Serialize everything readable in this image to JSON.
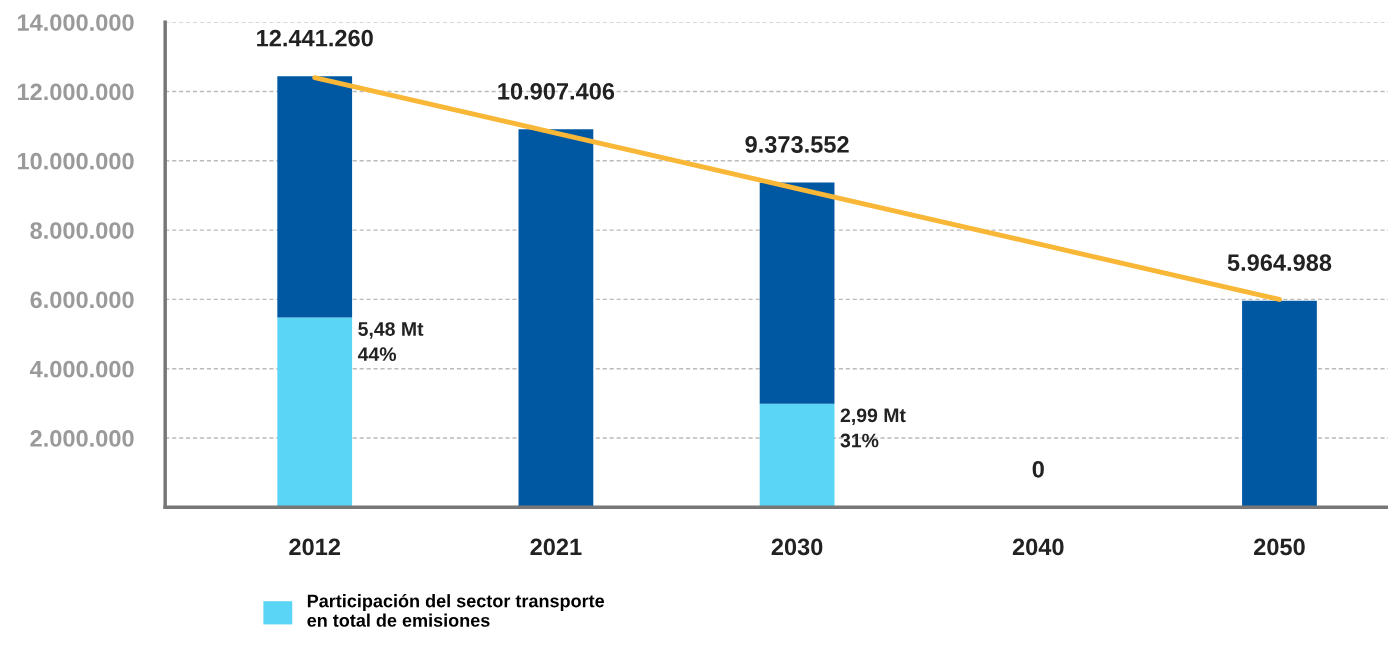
{
  "chart_data": {
    "type": "bar",
    "stacked": true,
    "categories": [
      "2012",
      "2021",
      "2030",
      "2040",
      "2050"
    ],
    "series": [
      {
        "name": "Participación del sector transporte\nen total de emisiones",
        "color": "#5bd5f5",
        "values": [
          5480000,
          0,
          2990000,
          0,
          0
        ]
      },
      {
        "color": "#0058a3",
        "values": [
          6961260,
          10907406,
          6383552,
          0,
          5964988
        ]
      },
      {
        "type": "line",
        "color": "#f9b737",
        "values": [
          12400000,
          10800000,
          9200000,
          7600000,
          6000000
        ]
      }
    ],
    "totals": [
      "12.441.260",
      "10.907.406",
      "9.373.552",
      "0",
      "5.964.988"
    ],
    "annotations": [
      {
        "text": "5,48 Mt\n44%",
        "x": "2012",
        "y": 5480000
      },
      {
        "text": "2,99 Mt\n31%",
        "x": "2030",
        "y": 2990000
      }
    ],
    "ylim": [
      0,
      14000000
    ],
    "yticks": [
      {
        "value": 2000000,
        "label": "2.000.000"
      },
      {
        "value": 4000000,
        "label": "4.000.000"
      },
      {
        "value": 6000000,
        "label": "6.000.000"
      },
      {
        "value": 8000000,
        "label": "8.000.000"
      },
      {
        "value": 10000000,
        "label": "10.000.000"
      },
      {
        "value": 12000000,
        "label": "12.000.000"
      },
      {
        "value": 14000000,
        "label": "14.000.000"
      }
    ],
    "grid": "y",
    "legend": "bottom left"
  }
}
